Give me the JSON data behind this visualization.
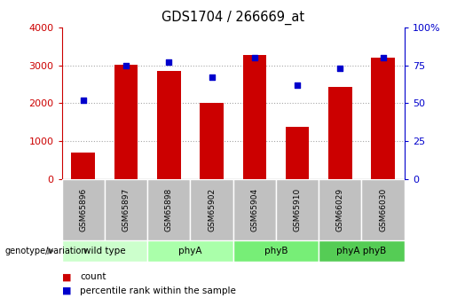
{
  "title": "GDS1704 / 266669_at",
  "samples": [
    "GSM65896",
    "GSM65897",
    "GSM65898",
    "GSM65902",
    "GSM65904",
    "GSM65910",
    "GSM66029",
    "GSM66030"
  ],
  "counts": [
    700,
    3010,
    2850,
    2000,
    3280,
    1380,
    2440,
    3200
  ],
  "percentiles": [
    52,
    75,
    77,
    67,
    80,
    62,
    73,
    80
  ],
  "groups": [
    {
      "label": "wild type",
      "indices": [
        0,
        1
      ],
      "color": "#ccffcc"
    },
    {
      "label": "phyA",
      "indices": [
        2,
        3
      ],
      "color": "#aaeea a"
    },
    {
      "label": "phyB",
      "indices": [
        4,
        5
      ],
      "color": "#77dd77"
    },
    {
      "label": "phyA phyB",
      "indices": [
        6,
        7
      ],
      "color": "#55cc55"
    }
  ],
  "bar_color": "#cc0000",
  "dot_color": "#0000cc",
  "left_ylim": [
    0,
    4000
  ],
  "right_ylim": [
    0,
    100
  ],
  "left_yticks": [
    0,
    1000,
    2000,
    3000,
    4000
  ],
  "right_yticks": [
    0,
    25,
    50,
    75,
    100
  ],
  "left_yticklabels": [
    "0",
    "1000",
    "2000",
    "3000",
    "4000"
  ],
  "right_yticklabels": [
    "0",
    "25",
    "50",
    "75",
    "100%"
  ],
  "grid_yticks": [
    1000,
    2000,
    3000
  ],
  "grid_linestyle": ":",
  "grid_linewidth": 0.8,
  "bg_xtick": "#c0c0c0",
  "legend_label_count": "count",
  "legend_label_pct": "percentile rank within the sample",
  "group_colors": [
    "#ccffcc",
    "#aaffaa",
    "#77ee77",
    "#55cc55"
  ]
}
